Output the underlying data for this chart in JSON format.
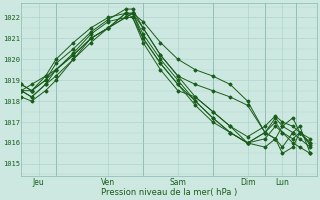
{
  "bg_color": "#cce8e0",
  "grid_color": "#aacfc8",
  "line_color": "#1a5c1a",
  "marker_color": "#1a5c1a",
  "ylabel_ticks": [
    1015,
    1016,
    1017,
    1018,
    1019,
    1020,
    1021,
    1022
  ],
  "ylim": [
    1014.4,
    1022.7
  ],
  "xlabel": "Pression niveau de la mer( hPa )",
  "xlabel_color": "#1a5c1a",
  "day_labels": [
    "Jeu",
    "Ven",
    "Sam",
    "Dim",
    "Lun"
  ],
  "day_x": [
    0.5,
    2.5,
    4.5,
    6.5,
    7.5
  ],
  "vline_x": [
    1.0,
    3.5,
    5.5,
    7.0,
    7.9
  ],
  "xlim": [
    0,
    8.5
  ],
  "series": [
    {
      "points": [
        [
          0,
          1018.5
        ],
        [
          0.3,
          1018.8
        ],
        [
          0.7,
          1019.2
        ],
        [
          1.0,
          1019.5
        ],
        [
          1.5,
          1020.3
        ],
        [
          2.0,
          1021.2
        ],
        [
          2.5,
          1021.8
        ],
        [
          3.0,
          1022.0
        ],
        [
          3.2,
          1022.0
        ],
        [
          3.5,
          1021.0
        ],
        [
          4.0,
          1019.8
        ],
        [
          4.5,
          1018.8
        ],
        [
          5.0,
          1017.8
        ],
        [
          5.5,
          1017.0
        ],
        [
          6.0,
          1016.5
        ],
        [
          6.5,
          1016.0
        ],
        [
          7.0,
          1016.5
        ],
        [
          7.3,
          1017.0
        ],
        [
          7.5,
          1016.5
        ],
        [
          7.8,
          1016.2
        ],
        [
          8.0,
          1016.5
        ],
        [
          8.3,
          1015.9
        ]
      ]
    },
    {
      "points": [
        [
          0,
          1018.5
        ],
        [
          0.3,
          1018.5
        ],
        [
          0.7,
          1019.0
        ],
        [
          1.0,
          1019.5
        ],
        [
          1.5,
          1020.2
        ],
        [
          2.0,
          1021.0
        ],
        [
          2.5,
          1021.5
        ],
        [
          3.0,
          1022.2
        ],
        [
          3.2,
          1022.2
        ],
        [
          3.5,
          1021.2
        ],
        [
          4.0,
          1020.0
        ],
        [
          4.5,
          1019.0
        ],
        [
          5.0,
          1018.0
        ],
        [
          5.5,
          1017.2
        ],
        [
          6.0,
          1016.5
        ],
        [
          6.5,
          1016.0
        ],
        [
          7.0,
          1016.5
        ],
        [
          7.3,
          1017.2
        ],
        [
          7.5,
          1016.8
        ],
        [
          7.8,
          1016.5
        ],
        [
          8.0,
          1016.2
        ],
        [
          8.3,
          1015.8
        ]
      ]
    },
    {
      "points": [
        [
          0,
          1018.8
        ],
        [
          0.3,
          1018.5
        ],
        [
          0.7,
          1019.0
        ],
        [
          1.0,
          1019.8
        ],
        [
          1.5,
          1020.5
        ],
        [
          2.0,
          1021.3
        ],
        [
          2.5,
          1021.9
        ],
        [
          3.0,
          1022.4
        ],
        [
          3.2,
          1022.4
        ],
        [
          3.5,
          1021.5
        ],
        [
          4.0,
          1020.2
        ],
        [
          4.5,
          1019.2
        ],
        [
          5.0,
          1018.2
        ],
        [
          5.5,
          1017.5
        ],
        [
          6.0,
          1016.8
        ],
        [
          6.5,
          1016.3
        ],
        [
          7.0,
          1016.8
        ],
        [
          7.3,
          1017.3
        ],
        [
          7.5,
          1017.0
        ],
        [
          7.8,
          1016.8
        ],
        [
          8.0,
          1016.5
        ],
        [
          8.3,
          1016.0
        ]
      ]
    },
    {
      "points": [
        [
          0,
          1018.5
        ],
        [
          0.3,
          1018.2
        ],
        [
          0.7,
          1018.8
        ],
        [
          1.0,
          1019.2
        ],
        [
          1.5,
          1020.0
        ],
        [
          2.0,
          1021.0
        ],
        [
          2.5,
          1021.5
        ],
        [
          3.0,
          1022.2
        ],
        [
          3.2,
          1022.2
        ],
        [
          3.5,
          1021.0
        ],
        [
          4.0,
          1019.8
        ],
        [
          4.5,
          1018.8
        ],
        [
          5.0,
          1018.0
        ],
        [
          5.5,
          1017.2
        ],
        [
          6.0,
          1016.5
        ],
        [
          6.5,
          1016.0
        ],
        [
          7.0,
          1016.2
        ],
        [
          7.3,
          1016.8
        ],
        [
          7.5,
          1016.5
        ],
        [
          7.8,
          1016.0
        ],
        [
          8.0,
          1015.8
        ],
        [
          8.3,
          1015.5
        ]
      ]
    },
    {
      "points": [
        [
          0,
          1018.8
        ],
        [
          0.3,
          1018.5
        ],
        [
          0.7,
          1019.2
        ],
        [
          1.0,
          1020.0
        ],
        [
          1.5,
          1020.8
        ],
        [
          2.0,
          1021.5
        ],
        [
          2.5,
          1022.0
        ],
        [
          3.0,
          1022.2
        ],
        [
          3.2,
          1022.0
        ],
        [
          3.5,
          1020.8
        ],
        [
          4.0,
          1019.5
        ],
        [
          4.5,
          1018.5
        ],
        [
          5.0,
          1018.2
        ],
        [
          5.5,
          1017.5
        ],
        [
          6.0,
          1016.8
        ],
        [
          6.5,
          1016.0
        ],
        [
          7.0,
          1015.8
        ],
        [
          7.3,
          1016.2
        ],
        [
          7.5,
          1015.8
        ],
        [
          7.8,
          1016.5
        ],
        [
          8.0,
          1016.8
        ],
        [
          8.3,
          1015.5
        ]
      ]
    },
    {
      "points": [
        [
          0,
          1018.2
        ],
        [
          0.3,
          1018.0
        ],
        [
          0.7,
          1018.5
        ],
        [
          1.0,
          1019.0
        ],
        [
          1.5,
          1020.0
        ],
        [
          2.0,
          1020.8
        ],
        [
          2.5,
          1021.5
        ],
        [
          3.0,
          1022.0
        ],
        [
          3.2,
          1022.2
        ],
        [
          3.5,
          1021.8
        ],
        [
          4.0,
          1020.8
        ],
        [
          4.5,
          1020.0
        ],
        [
          5.0,
          1019.5
        ],
        [
          5.5,
          1019.2
        ],
        [
          6.0,
          1018.8
        ],
        [
          6.5,
          1018.0
        ],
        [
          7.0,
          1016.5
        ],
        [
          7.3,
          1016.2
        ],
        [
          7.5,
          1015.5
        ],
        [
          7.8,
          1015.8
        ],
        [
          8.0,
          1016.5
        ],
        [
          8.3,
          1016.2
        ]
      ]
    },
    {
      "points": [
        [
          0,
          1018.5
        ],
        [
          0.3,
          1018.2
        ],
        [
          0.7,
          1018.8
        ],
        [
          1.0,
          1019.5
        ],
        [
          1.5,
          1020.2
        ],
        [
          2.0,
          1021.0
        ],
        [
          2.5,
          1021.5
        ],
        [
          3.0,
          1022.0
        ],
        [
          3.2,
          1022.2
        ],
        [
          3.5,
          1021.5
        ],
        [
          4.0,
          1020.2
        ],
        [
          4.5,
          1019.2
        ],
        [
          5.0,
          1018.8
        ],
        [
          5.5,
          1018.5
        ],
        [
          6.0,
          1018.2
        ],
        [
          6.5,
          1017.8
        ],
        [
          7.0,
          1016.5
        ],
        [
          7.3,
          1016.2
        ],
        [
          7.5,
          1016.8
        ],
        [
          7.8,
          1017.2
        ],
        [
          8.0,
          1016.5
        ],
        [
          8.3,
          1016.0
        ]
      ]
    }
  ]
}
